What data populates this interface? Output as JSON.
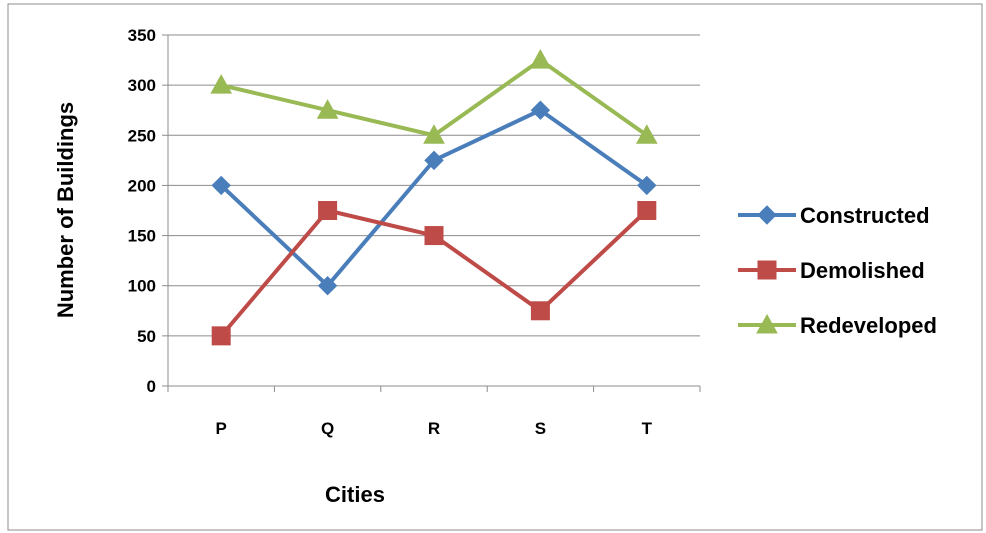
{
  "chart_data": {
    "type": "line",
    "title": "",
    "xlabel": "Cities",
    "ylabel": "Number of Buildings",
    "categories": [
      "P",
      "Q",
      "R",
      "S",
      "T"
    ],
    "ylim": [
      0,
      350
    ],
    "yticks": [
      0,
      50,
      100,
      150,
      200,
      250,
      300,
      350
    ],
    "grid": true,
    "legend_position": "right",
    "series": [
      {
        "name": "Constructed",
        "values": [
          200,
          100,
          225,
          275,
          200
        ],
        "color": "#4a7ebb",
        "marker": "diamond"
      },
      {
        "name": "Demolished",
        "values": [
          50,
          175,
          150,
          75,
          175
        ],
        "color": "#be4b48",
        "marker": "square"
      },
      {
        "name": "Redeveloped",
        "values": [
          300,
          275,
          250,
          325,
          250
        ],
        "color": "#98b954",
        "marker": "triangle"
      }
    ]
  }
}
